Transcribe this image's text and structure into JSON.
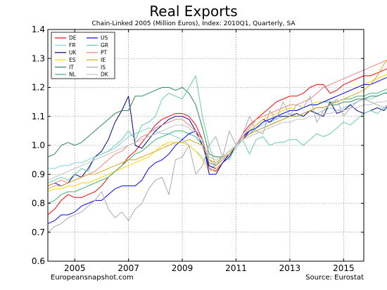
{
  "chart_data": {
    "type": "line",
    "title": "Real Exports",
    "subtitle": "Chain-Linked 2005 (Million Euros), Index: 2010Q1, Quarterly, SA",
    "xlabel": "",
    "ylabel": "",
    "xlim": [
      2004.0,
      2015.75
    ],
    "ylim": [
      0.6,
      1.4
    ],
    "x_ticks": [
      2005,
      2007,
      2009,
      2011,
      2013,
      2015
    ],
    "y_ticks": [
      0.6,
      0.7,
      0.8,
      0.9,
      1.0,
      1.1,
      1.2,
      1.3,
      1.4
    ],
    "grid": true,
    "legend_position": "top-left",
    "x_start": 2004.0,
    "x_step": 0.25,
    "series": [
      {
        "name": "DE",
        "color": "#ff0000",
        "values": [
          0.76,
          0.78,
          0.81,
          0.83,
          0.82,
          0.82,
          0.83,
          0.84,
          0.86,
          0.89,
          0.91,
          0.93,
          0.96,
          0.98,
          1.01,
          1.04,
          1.07,
          1.09,
          1.1,
          1.11,
          1.11,
          1.1,
          1.07,
          1.02,
          0.92,
          0.91,
          0.94,
          0.97,
          1.0,
          1.04,
          1.07,
          1.09,
          1.11,
          1.13,
          1.15,
          1.16,
          1.17,
          1.17,
          1.18,
          1.2,
          1.21,
          1.21,
          1.18,
          1.19,
          1.21,
          1.22,
          1.23,
          1.24,
          1.24,
          1.25,
          1.26,
          1.27,
          1.28,
          1.29,
          1.3
        ]
      },
      {
        "name": "FR",
        "color": "#87ceeb",
        "values": [
          0.92,
          0.92,
          0.93,
          0.93,
          0.94,
          0.94,
          0.95,
          0.96,
          0.97,
          0.98,
          0.99,
          1.01,
          1.03,
          1.04,
          1.05,
          1.06,
          1.05,
          1.04,
          1.04,
          1.03,
          1.02,
          1.0,
          0.98,
          0.96,
          0.92,
          0.93,
          0.95,
          0.97,
          0.99,
          1.02,
          1.04,
          1.06,
          1.07,
          1.08,
          1.09,
          1.1,
          1.11,
          1.1,
          1.1,
          1.12,
          1.11,
          1.12,
          1.13,
          1.12,
          1.13,
          1.14,
          1.15,
          1.16,
          1.16,
          1.17,
          1.18,
          1.19,
          1.19,
          1.2,
          1.21
        ]
      },
      {
        "name": "UK",
        "color": "#000080",
        "values": [
          0.86,
          0.87,
          0.86,
          0.87,
          0.9,
          0.89,
          0.92,
          0.96,
          0.98,
          1.02,
          1.08,
          1.12,
          1.17,
          1.0,
          0.99,
          1.02,
          1.05,
          1.07,
          1.09,
          1.1,
          1.1,
          1.09,
          1.05,
          1.0,
          0.93,
          0.92,
          0.94,
          0.96,
          1.0,
          1.02,
          1.05,
          1.07,
          1.09,
          1.08,
          1.1,
          1.1,
          1.1,
          1.11,
          1.1,
          1.12,
          1.11,
          1.1,
          1.15,
          1.11,
          1.12,
          1.14,
          1.12,
          1.11,
          1.12,
          1.13,
          1.12,
          1.15,
          1.16,
          1.16,
          1.16
        ]
      },
      {
        "name": "ES",
        "color": "#ffd700",
        "values": [
          0.84,
          0.85,
          0.85,
          0.86,
          0.86,
          0.87,
          0.87,
          0.88,
          0.89,
          0.9,
          0.91,
          0.92,
          0.93,
          0.94,
          0.95,
          0.96,
          0.98,
          1.0,
          1.01,
          1.01,
          1.01,
          1.0,
          0.98,
          0.95,
          0.91,
          0.92,
          0.94,
          0.97,
          1.0,
          1.03,
          1.05,
          1.07,
          1.09,
          1.1,
          1.11,
          1.12,
          1.13,
          1.12,
          1.13,
          1.14,
          1.15,
          1.15,
          1.16,
          1.17,
          1.18,
          1.19,
          1.2,
          1.21,
          1.22,
          1.23,
          1.24,
          1.25,
          1.25,
          1.26,
          1.27
        ]
      },
      {
        "name": "IT",
        "color": "#2e8b57",
        "values": [
          0.96,
          0.97,
          1.0,
          1.01,
          1.0,
          1.01,
          1.03,
          1.05,
          1.07,
          1.09,
          1.11,
          1.12,
          1.12,
          1.17,
          1.17,
          1.18,
          1.19,
          1.2,
          1.2,
          1.19,
          1.2,
          1.18,
          1.14,
          1.06,
          0.97,
          0.96,
          0.96,
          0.98,
          1.0,
          1.02,
          1.04,
          1.05,
          1.06,
          1.07,
          1.08,
          1.09,
          1.1,
          1.1,
          1.11,
          1.12,
          1.13,
          1.13,
          1.14,
          1.14,
          1.15,
          1.15,
          1.16,
          1.16,
          1.17,
          1.17,
          1.18,
          1.18,
          1.19,
          1.19,
          1.2
        ]
      },
      {
        "name": "NL",
        "color": "#3cb371",
        "values": [
          0.8,
          0.81,
          0.83,
          0.84,
          0.84,
          0.85,
          0.86,
          0.87,
          0.88,
          0.89,
          0.91,
          0.93,
          0.95,
          0.97,
          0.98,
          1.0,
          1.02,
          1.03,
          1.04,
          1.05,
          1.05,
          1.04,
          1.03,
          1.0,
          0.94,
          0.93,
          0.95,
          0.97,
          1.0,
          1.02,
          1.04,
          1.06,
          1.08,
          1.09,
          1.1,
          1.11,
          1.12,
          1.12,
          1.13,
          1.14,
          1.14,
          1.15,
          1.15,
          1.15,
          1.16,
          1.16,
          1.17,
          1.17,
          1.18,
          1.18,
          1.19,
          1.2,
          1.21,
          1.22,
          1.23
        ]
      },
      {
        "name": "US",
        "color": "#0000ff",
        "values": [
          0.73,
          0.74,
          0.76,
          0.76,
          0.77,
          0.79,
          0.8,
          0.81,
          0.81,
          0.83,
          0.85,
          0.86,
          0.86,
          0.86,
          0.88,
          0.92,
          0.94,
          0.95,
          0.97,
          1.0,
          1.02,
          1.04,
          1.05,
          1.02,
          0.9,
          0.9,
          0.94,
          0.97,
          1.0,
          1.03,
          1.05,
          1.06,
          1.08,
          1.09,
          1.1,
          1.11,
          1.12,
          1.12,
          1.13,
          1.14,
          1.14,
          1.15,
          1.16,
          1.17,
          1.18,
          1.19,
          1.2,
          1.21,
          1.21,
          1.22,
          1.23,
          1.24,
          1.24,
          1.23,
          1.23
        ]
      },
      {
        "name": "GR",
        "color": "#66cdaa",
        "values": [
          0.87,
          0.88,
          0.89,
          0.88,
          0.9,
          0.92,
          0.91,
          0.96,
          0.97,
          0.98,
          1.0,
          1.02,
          1.05,
          1.02,
          1.07,
          1.08,
          1.1,
          1.16,
          1.18,
          1.17,
          1.16,
          1.2,
          1.24,
          1.1,
          1.0,
          0.93,
          0.96,
          0.95,
          1.0,
          1.02,
          0.97,
          1.02,
          1.03,
          1.0,
          1.01,
          1.01,
          1.02,
          1.02,
          1.0,
          1.02,
          1.04,
          1.03,
          1.04,
          1.06,
          1.08,
          1.07,
          1.09,
          1.11,
          1.12,
          1.11,
          1.13,
          1.12,
          1.12,
          1.11,
          1.12
        ]
      },
      {
        "name": "PT",
        "color": "#f08080",
        "values": [
          0.86,
          0.87,
          0.88,
          0.87,
          0.88,
          0.89,
          0.9,
          0.91,
          0.93,
          0.95,
          0.97,
          0.98,
          1.0,
          1.01,
          1.03,
          1.04,
          1.06,
          1.07,
          1.08,
          1.09,
          1.09,
          1.07,
          1.05,
          1.02,
          0.95,
          0.93,
          0.95,
          0.97,
          1.0,
          1.03,
          1.06,
          1.09,
          1.1,
          1.11,
          1.12,
          1.13,
          1.14,
          1.14,
          1.15,
          1.16,
          1.18,
          1.2,
          1.21,
          1.22,
          1.23,
          1.24,
          1.25,
          1.26,
          1.27,
          1.28,
          1.29,
          1.3,
          1.31,
          1.32,
          1.31
        ]
      },
      {
        "name": "IE",
        "color": "#daa520",
        "values": [
          0.85,
          0.86,
          0.86,
          0.87,
          0.88,
          0.89,
          0.9,
          0.9,
          0.91,
          0.92,
          0.93,
          0.94,
          0.95,
          0.95,
          0.96,
          0.97,
          0.98,
          0.99,
          1.0,
          1.01,
          1.01,
          1.02,
          1.01,
          1.0,
          0.95,
          0.94,
          0.96,
          0.97,
          1.0,
          1.02,
          1.04,
          1.05,
          1.06,
          1.07,
          1.08,
          1.09,
          1.1,
          1.1,
          1.11,
          1.12,
          1.13,
          1.13,
          1.14,
          1.15,
          1.16,
          1.17,
          1.18,
          1.19,
          1.21,
          1.24,
          1.28,
          1.31,
          1.33,
          1.34,
          1.33
        ]
      },
      {
        "name": "IS",
        "color": "#aaaaaa",
        "values": [
          0.7,
          0.72,
          0.73,
          0.75,
          0.76,
          0.77,
          0.79,
          0.81,
          0.84,
          0.78,
          0.75,
          0.77,
          0.74,
          0.78,
          0.8,
          0.85,
          0.88,
          0.89,
          0.83,
          0.95,
          0.96,
          1.0,
          0.9,
          0.93,
          1.0,
          1.03,
          0.96,
          1.05,
          1.0,
          1.04,
          1.1,
          1.05,
          1.04,
          1.12,
          1.09,
          1.15,
          1.1,
          1.14,
          1.13,
          1.17,
          1.08,
          1.12,
          1.14,
          1.16,
          1.1,
          1.13,
          1.15,
          1.16,
          1.15,
          1.14,
          1.13,
          1.15,
          1.14,
          1.15,
          1.16
        ]
      },
      {
        "name": "DK",
        "color": "#c0c0c0",
        "values": [
          0.88,
          0.89,
          0.9,
          0.91,
          0.92,
          0.93,
          0.94,
          0.95,
          0.96,
          0.97,
          0.98,
          0.99,
          1.0,
          1.01,
          1.02,
          1.03,
          1.04,
          1.05,
          1.06,
          1.07,
          1.07,
          1.06,
          1.04,
          1.01,
          0.96,
          0.95,
          0.96,
          0.98,
          1.0,
          1.02,
          1.03,
          1.04,
          1.05,
          1.06,
          1.07,
          1.08,
          1.08,
          1.09,
          1.09,
          1.1,
          1.1,
          1.11,
          1.11,
          1.12,
          1.12,
          1.13,
          1.13,
          1.14,
          1.14,
          1.15,
          1.15,
          1.16,
          1.16,
          1.17,
          1.17
        ]
      }
    ]
  },
  "footer": {
    "left": "Europeansnapshot.com",
    "right": "Source: Eurostat"
  }
}
